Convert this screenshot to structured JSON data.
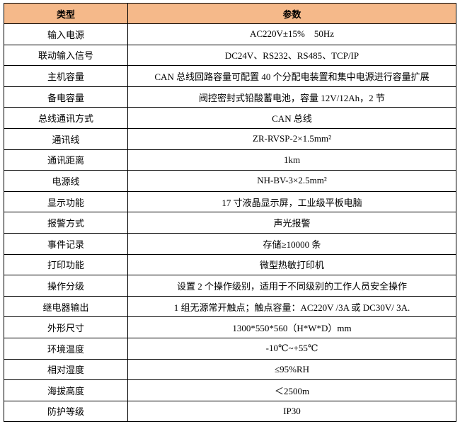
{
  "table": {
    "header": [
      "类型",
      "参数"
    ],
    "rows": [
      [
        "输入电源",
        "AC220V±15%    50Hz"
      ],
      [
        "联动输入信号",
        "DC24V、RS232、RS485、TCP/IP"
      ],
      [
        "主机容量",
        "CAN 总线回路容量可配置 40 个分配电装置和集中电源进行容量扩展"
      ],
      [
        "备电容量",
        "阀控密封式铅酸蓄电池，容量 12V/12Ah，2 节"
      ],
      [
        "总线通讯方式",
        "CAN 总线"
      ],
      [
        "通讯线",
        "ZR-RVSP-2×1.5mm²"
      ],
      [
        "通讯距离",
        "1km"
      ],
      [
        "电源线",
        "NH-BV-3×2.5mm²"
      ],
      [
        "显示功能",
        "17 寸液晶显示屏，工业级平板电脑"
      ],
      [
        "报警方式",
        "声光报警"
      ],
      [
        "事件记录",
        "存储≥10000 条"
      ],
      [
        "打印功能",
        "微型热敏打印机"
      ],
      [
        "操作分级",
        "设置 2 个操作级别，适用于不同级别的工作人员安全操作"
      ],
      [
        "继电器输出",
        "1 组无源常开触点；触点容量：AC220V /3A 或 DC30V/ 3A."
      ],
      [
        "外形尺寸",
        "1300*550*560（H*W*D）mm"
      ],
      [
        "环境温度",
        "-10℃~+55℃"
      ],
      [
        "相对湿度",
        "≤95%RH"
      ],
      [
        "海拔高度",
        "＜2500m"
      ],
      [
        "防护等级",
        "IP30"
      ]
    ]
  }
}
